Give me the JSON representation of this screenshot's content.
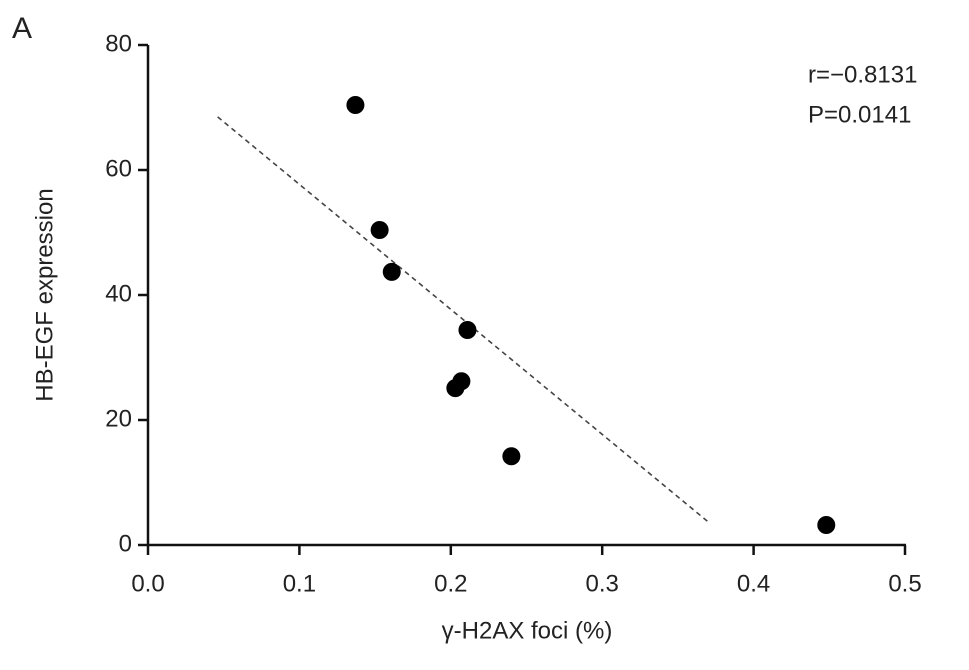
{
  "panel_label": "A",
  "chart_data": {
    "type": "scatter",
    "x_label": "γ-H2AX foci (%)",
    "y_label": "HB-EGF expression",
    "annotations": [
      "r=−0.8131",
      "P=0.0141"
    ],
    "x": [
      0.137,
      0.153,
      0.161,
      0.211,
      0.207,
      0.203,
      0.24,
      0.448
    ],
    "values": [
      70.4,
      50.4,
      43.7,
      34.4,
      26.2,
      25.1,
      14.2,
      3.2
    ],
    "color": "#000000",
    "trendline": {
      "x": [
        0.046,
        0.37
      ],
      "y": [
        68.5,
        3.7
      ],
      "color": "#444444"
    },
    "xlim": [
      0,
      0.5
    ],
    "xticks": [
      {
        "value": 0,
        "label": "0.0"
      },
      0.1,
      0.2,
      0.3,
      0.4,
      0.5
    ],
    "ylim": [
      0,
      80
    ],
    "yticks": [
      0,
      20,
      40,
      60,
      80
    ]
  }
}
